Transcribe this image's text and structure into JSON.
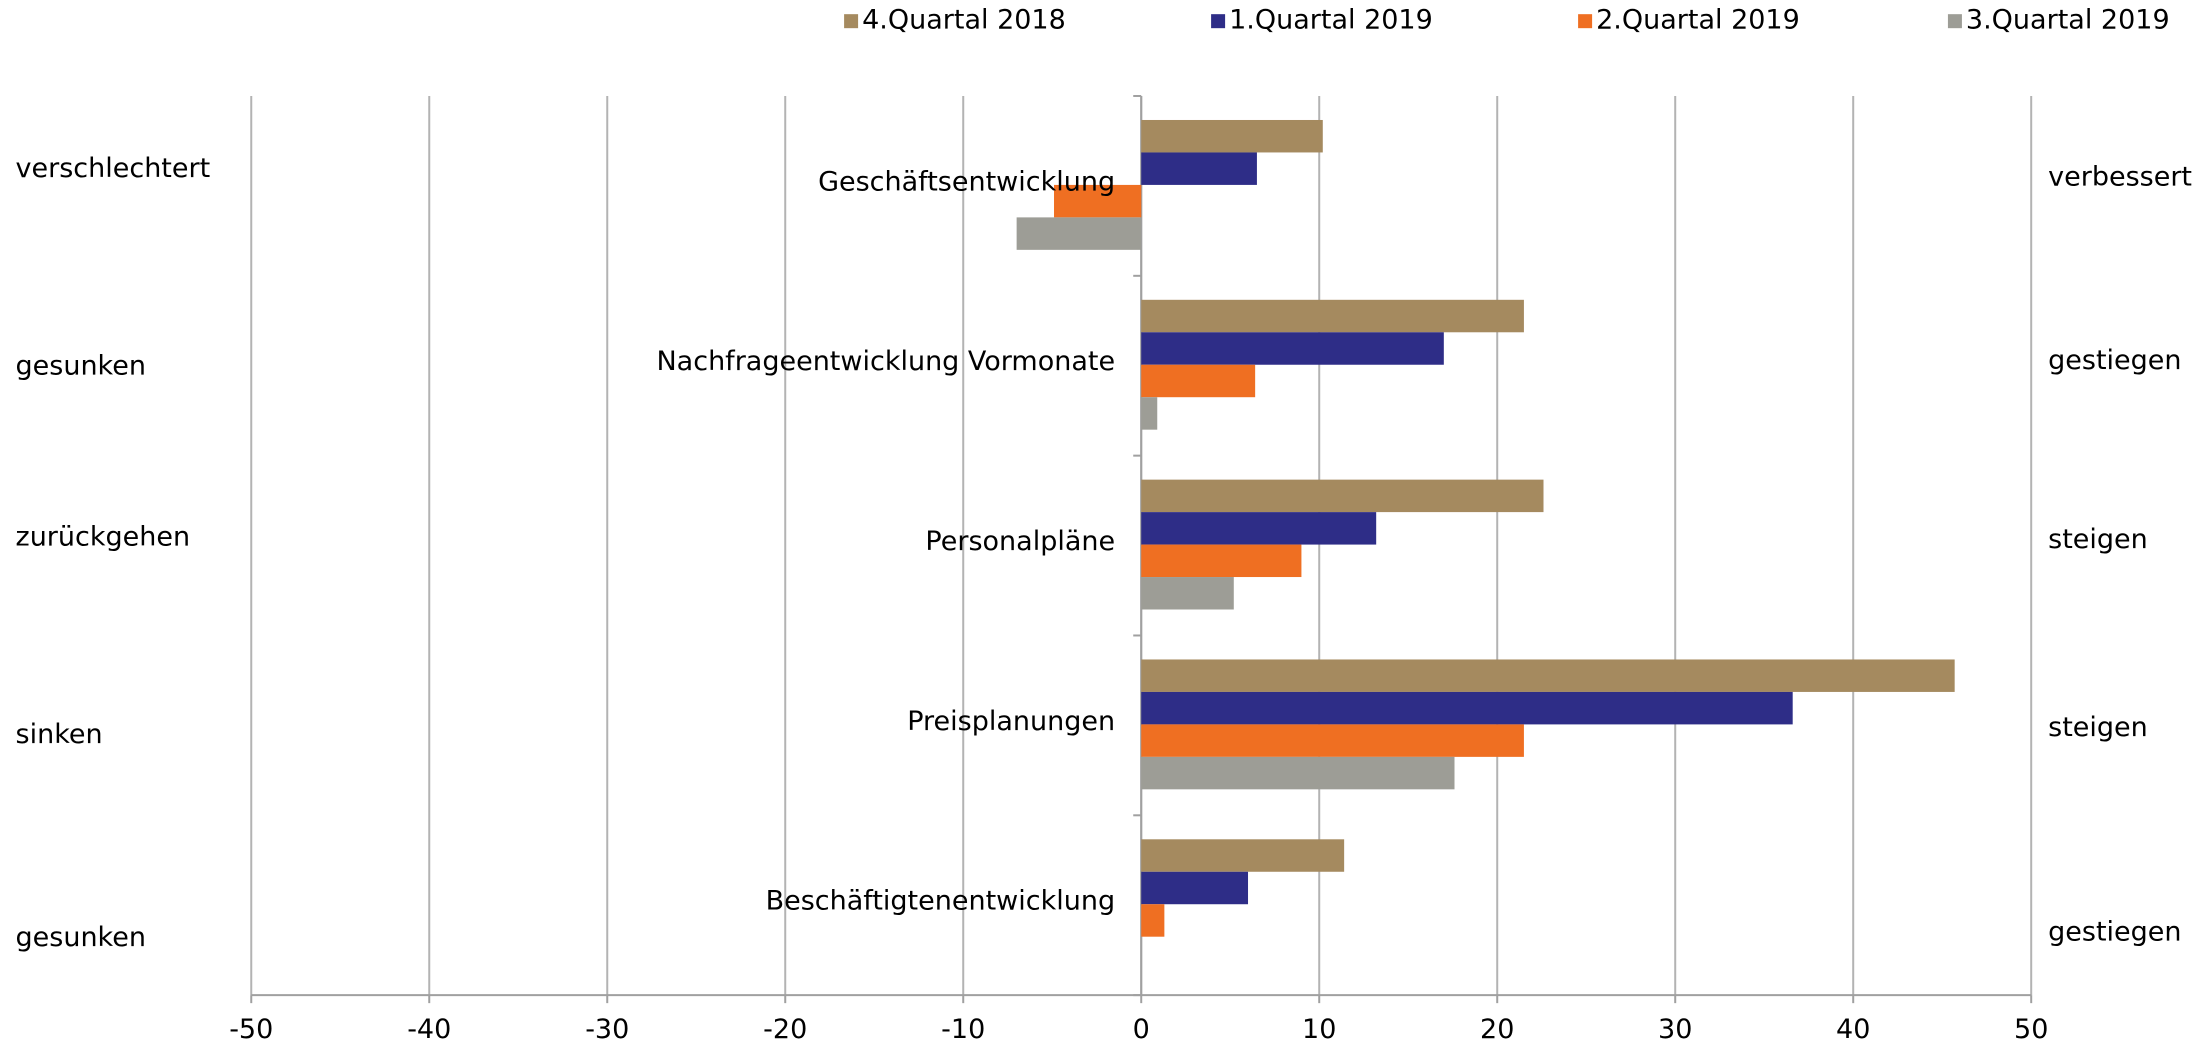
{
  "chart_data": {
    "type": "bar",
    "orientation": "horizontal",
    "categories": [
      "Geschäftsentwicklung",
      "Nachfrageentwicklung Vormonate",
      "Personalpläne",
      "Preisplanungen",
      "Beschäftigtenentwicklung"
    ],
    "left_labels": [
      "verschlechtert",
      "gesunken",
      "zurückgehen",
      "sinken",
      "gesunken"
    ],
    "right_labels": [
      "verbessert",
      "gestiegen",
      "steigen",
      "steigen",
      "gestiegen"
    ],
    "series": [
      {
        "name": "4.Quartal 2018",
        "color": "#a58a5f",
        "values": [
          10.2,
          21.5,
          22.6,
          45.7,
          11.4
        ]
      },
      {
        "name": "1.Quartal 2019",
        "color": "#2e2d87",
        "values": [
          6.5,
          17.0,
          13.2,
          36.6,
          6.0
        ]
      },
      {
        "name": "2.Quartal 2019",
        "color": "#ef6f22",
        "values": [
          -4.9,
          6.4,
          9.0,
          21.5,
          1.3
        ]
      },
      {
        "name": "3.Quartal 2019",
        "color": "#9d9d96",
        "values": [
          -7.0,
          0.9,
          5.2,
          17.6,
          null
        ]
      }
    ],
    "xlim": [
      -50,
      50
    ],
    "xticks": [
      -50,
      -40,
      -30,
      -20,
      -10,
      0,
      10,
      20,
      30,
      40,
      50
    ],
    "grid": true,
    "legend": "top"
  }
}
